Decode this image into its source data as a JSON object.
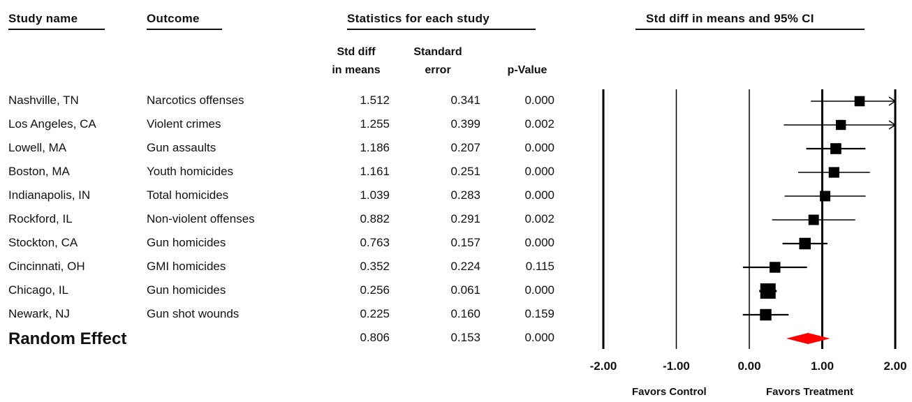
{
  "headers": {
    "study_name": "Study name",
    "outcome": "Outcome",
    "stats_group": "Statistics for each study",
    "plot_title": "Std diff in means and 95% CI",
    "std_diff_line1": "Std diff",
    "std_diff_line2": "in means",
    "std_err_line1": "Standard",
    "std_err_line2": "error",
    "p_value": "p-Value"
  },
  "studies": [
    {
      "name": "Nashville, TN",
      "outcome": "Narcotics offenses",
      "std_diff": "1.512",
      "std_err": "0.341",
      "p": "0.000"
    },
    {
      "name": "Los Angeles, CA",
      "outcome": "Violent crimes",
      "std_diff": "1.255",
      "std_err": "0.399",
      "p": "0.002"
    },
    {
      "name": "Lowell, MA",
      "outcome": "Gun assaults",
      "std_diff": "1.186",
      "std_err": "0.207",
      "p": "0.000"
    },
    {
      "name": "Boston, MA",
      "outcome": "Youth homicides",
      "std_diff": "1.161",
      "std_err": "0.251",
      "p": "0.000"
    },
    {
      "name": "Indianapolis, IN",
      "outcome": "Total homicides",
      "std_diff": "1.039",
      "std_err": "0.283",
      "p": "0.000"
    },
    {
      "name": "Rockford, IL",
      "outcome": "Non-violent offenses",
      "std_diff": "0.882",
      "std_err": "0.291",
      "p": "0.002"
    },
    {
      "name": "Stockton, CA",
      "outcome": "Gun homicides",
      "std_diff": "0.763",
      "std_err": "0.157",
      "p": "0.000"
    },
    {
      "name": "Cincinnati, OH",
      "outcome": "GMI homicides",
      "std_diff": "0.352",
      "std_err": "0.224",
      "p": "0.115"
    },
    {
      "name": "Chicago, IL",
      "outcome": "Gun homicides",
      "std_diff": "0.256",
      "std_err": "0.061",
      "p": "0.000"
    },
    {
      "name": "Newark, NJ",
      "outcome": "Gun shot wounds",
      "std_diff": "0.225",
      "std_err": "0.160",
      "p": "0.159"
    }
  ],
  "summary": {
    "name": "Random Effect",
    "std_diff": "0.806",
    "std_err": "0.153",
    "p": "0.000"
  },
  "favors": {
    "control": "Favors Control",
    "treatment": "Favors Treatment"
  },
  "colors": {
    "text": "#111111",
    "marker": "#000000",
    "summary_diamond": "#ff0000"
  },
  "chart_data": {
    "type": "forest",
    "xlim": [
      -2,
      2
    ],
    "ticks": [
      -2,
      -1,
      0,
      1,
      2
    ],
    "tick_labels": [
      "-2.00",
      "-1.00",
      "0.00",
      "1.00",
      "2.00"
    ],
    "points": [
      {
        "study": "Nashville, TN",
        "estimate": 1.512,
        "lower": 0.844,
        "upper": 2.18,
        "weight": 0.201
      },
      {
        "study": "Los Angeles, CA",
        "estimate": 1.255,
        "lower": 0.473,
        "upper": 2.037,
        "weight": 0.147
      },
      {
        "study": "Lowell, MA",
        "estimate": 1.186,
        "lower": 0.78,
        "upper": 1.592,
        "weight": 0.547
      },
      {
        "study": "Boston, MA",
        "estimate": 1.161,
        "lower": 0.669,
        "upper": 1.653,
        "weight": 0.372
      },
      {
        "study": "Indianapolis, IN",
        "estimate": 1.039,
        "lower": 0.484,
        "upper": 1.594,
        "weight": 0.292
      },
      {
        "study": "Rockford, IL",
        "estimate": 0.882,
        "lower": 0.312,
        "upper": 1.452,
        "weight": 0.277
      },
      {
        "study": "Stockton, CA",
        "estimate": 0.763,
        "lower": 0.455,
        "upper": 1.071,
        "weight": 0.952
      },
      {
        "study": "Cincinnati, OH",
        "estimate": 0.352,
        "lower": -0.087,
        "upper": 0.791,
        "weight": 0.467
      },
      {
        "study": "Chicago, IL",
        "estimate": 0.256,
        "lower": 0.136,
        "upper": 0.376,
        "weight": 6.27
      },
      {
        "study": "Newark, NJ",
        "estimate": 0.225,
        "lower": -0.089,
        "upper": 0.539,
        "weight": 0.917
      }
    ],
    "summary": {
      "estimate": 0.806,
      "lower": 0.506,
      "upper": 1.106
    },
    "xlabel_left": "Favors Control",
    "xlabel_right": "Favors Treatment"
  }
}
